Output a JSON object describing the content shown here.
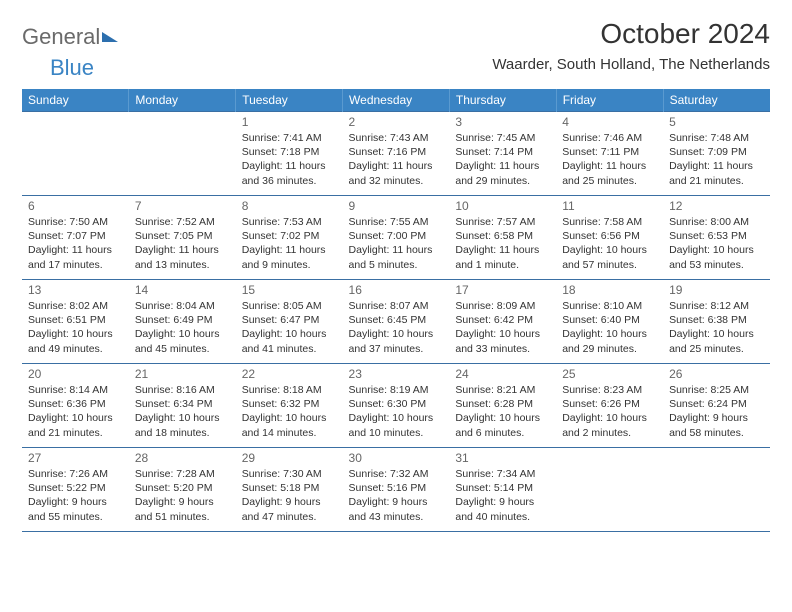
{
  "brand": {
    "part1": "General",
    "part2": "Blue"
  },
  "title": "October 2024",
  "location": "Waarder, South Holland, The Netherlands",
  "colors": {
    "header_bg": "#3a84c4",
    "header_text": "#ffffff",
    "row_border": "#3a6fa3",
    "page_bg": "#ffffff",
    "text": "#333333",
    "logo_gray": "#6a6a6a",
    "logo_blue": "#3a84c4"
  },
  "typography": {
    "title_fontsize": 28,
    "subtitle_fontsize": 15,
    "header_fontsize": 12,
    "daynum_fontsize": 12,
    "details_fontsize": 10.5
  },
  "layout": {
    "columns": 7,
    "rows": 5,
    "first_weekday_index": 2
  },
  "days_of_week": [
    "Sunday",
    "Monday",
    "Tuesday",
    "Wednesday",
    "Thursday",
    "Friday",
    "Saturday"
  ],
  "days": {
    "1": {
      "sunrise": "7:41 AM",
      "sunset": "7:18 PM",
      "daylight": "11 hours and 36 minutes."
    },
    "2": {
      "sunrise": "7:43 AM",
      "sunset": "7:16 PM",
      "daylight": "11 hours and 32 minutes."
    },
    "3": {
      "sunrise": "7:45 AM",
      "sunset": "7:14 PM",
      "daylight": "11 hours and 29 minutes."
    },
    "4": {
      "sunrise": "7:46 AM",
      "sunset": "7:11 PM",
      "daylight": "11 hours and 25 minutes."
    },
    "5": {
      "sunrise": "7:48 AM",
      "sunset": "7:09 PM",
      "daylight": "11 hours and 21 minutes."
    },
    "6": {
      "sunrise": "7:50 AM",
      "sunset": "7:07 PM",
      "daylight": "11 hours and 17 minutes."
    },
    "7": {
      "sunrise": "7:52 AM",
      "sunset": "7:05 PM",
      "daylight": "11 hours and 13 minutes."
    },
    "8": {
      "sunrise": "7:53 AM",
      "sunset": "7:02 PM",
      "daylight": "11 hours and 9 minutes."
    },
    "9": {
      "sunrise": "7:55 AM",
      "sunset": "7:00 PM",
      "daylight": "11 hours and 5 minutes."
    },
    "10": {
      "sunrise": "7:57 AM",
      "sunset": "6:58 PM",
      "daylight": "11 hours and 1 minute."
    },
    "11": {
      "sunrise": "7:58 AM",
      "sunset": "6:56 PM",
      "daylight": "10 hours and 57 minutes."
    },
    "12": {
      "sunrise": "8:00 AM",
      "sunset": "6:53 PM",
      "daylight": "10 hours and 53 minutes."
    },
    "13": {
      "sunrise": "8:02 AM",
      "sunset": "6:51 PM",
      "daylight": "10 hours and 49 minutes."
    },
    "14": {
      "sunrise": "8:04 AM",
      "sunset": "6:49 PM",
      "daylight": "10 hours and 45 minutes."
    },
    "15": {
      "sunrise": "8:05 AM",
      "sunset": "6:47 PM",
      "daylight": "10 hours and 41 minutes."
    },
    "16": {
      "sunrise": "8:07 AM",
      "sunset": "6:45 PM",
      "daylight": "10 hours and 37 minutes."
    },
    "17": {
      "sunrise": "8:09 AM",
      "sunset": "6:42 PM",
      "daylight": "10 hours and 33 minutes."
    },
    "18": {
      "sunrise": "8:10 AM",
      "sunset": "6:40 PM",
      "daylight": "10 hours and 29 minutes."
    },
    "19": {
      "sunrise": "8:12 AM",
      "sunset": "6:38 PM",
      "daylight": "10 hours and 25 minutes."
    },
    "20": {
      "sunrise": "8:14 AM",
      "sunset": "6:36 PM",
      "daylight": "10 hours and 21 minutes."
    },
    "21": {
      "sunrise": "8:16 AM",
      "sunset": "6:34 PM",
      "daylight": "10 hours and 18 minutes."
    },
    "22": {
      "sunrise": "8:18 AM",
      "sunset": "6:32 PM",
      "daylight": "10 hours and 14 minutes."
    },
    "23": {
      "sunrise": "8:19 AM",
      "sunset": "6:30 PM",
      "daylight": "10 hours and 10 minutes."
    },
    "24": {
      "sunrise": "8:21 AM",
      "sunset": "6:28 PM",
      "daylight": "10 hours and 6 minutes."
    },
    "25": {
      "sunrise": "8:23 AM",
      "sunset": "6:26 PM",
      "daylight": "10 hours and 2 minutes."
    },
    "26": {
      "sunrise": "8:25 AM",
      "sunset": "6:24 PM",
      "daylight": "9 hours and 58 minutes."
    },
    "27": {
      "sunrise": "7:26 AM",
      "sunset": "5:22 PM",
      "daylight": "9 hours and 55 minutes."
    },
    "28": {
      "sunrise": "7:28 AM",
      "sunset": "5:20 PM",
      "daylight": "9 hours and 51 minutes."
    },
    "29": {
      "sunrise": "7:30 AM",
      "sunset": "5:18 PM",
      "daylight": "9 hours and 47 minutes."
    },
    "30": {
      "sunrise": "7:32 AM",
      "sunset": "5:16 PM",
      "daylight": "9 hours and 43 minutes."
    },
    "31": {
      "sunrise": "7:34 AM",
      "sunset": "5:14 PM",
      "daylight": "9 hours and 40 minutes."
    }
  },
  "labels": {
    "sunrise": "Sunrise:",
    "sunset": "Sunset:",
    "daylight": "Daylight:"
  }
}
